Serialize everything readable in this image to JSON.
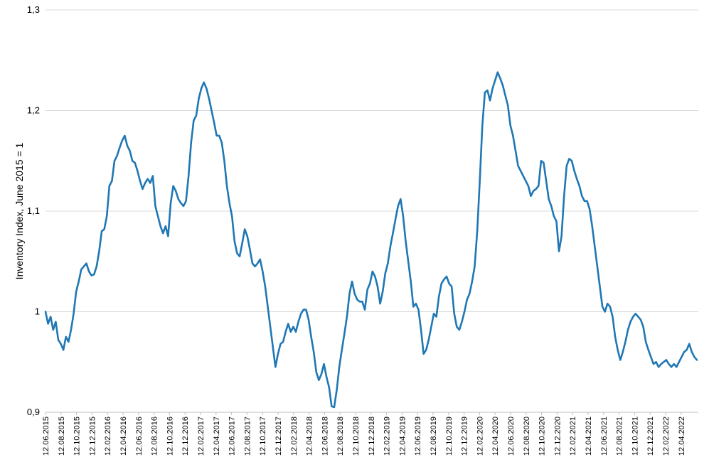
{
  "chart_data": {
    "type": "line",
    "title": "",
    "xlabel": "",
    "ylabel": "Inventory Index, June 2015 = 1",
    "ylim": [
      0.9,
      1.3
    ],
    "y_ticks": [
      "0,9",
      "1",
      "1,1",
      "1,2",
      "1,3"
    ],
    "y_tick_values": [
      0.9,
      1.0,
      1.1,
      1.2,
      1.3
    ],
    "grid": "horizontal",
    "line_color": "#1f77b4",
    "x_ticks": [
      "12.06.2015",
      "12.08.2015",
      "12.10.2015",
      "12.12.2015",
      "12.02.2016",
      "12.04.2016",
      "12.06.2016",
      "12.08.2016",
      "12.10.2016",
      "12.12.2016",
      "12.02.2017",
      "12.04.2017",
      "12.06.2017",
      "12.08.2017",
      "12.10.2017",
      "12.12.2017",
      "12.02.2018",
      "12.04.2018",
      "12.06.2018",
      "12.08.2018",
      "12.10.2018",
      "12.12.2018",
      "12.02.2019",
      "12.04.2019",
      "12.06.2019",
      "12.08.2019",
      "12.10.2019",
      "12.12.2019",
      "12.02.2020",
      "12.04.2020",
      "12.06.2020",
      "12.08.2020",
      "12.10.2020",
      "12.12.2020",
      "12.02.2021",
      "12.04.2021",
      "12.06.2021",
      "12.08.2021",
      "12.10.2021",
      "12.12.2021",
      "12.02.2022",
      "12.04.2022"
    ],
    "series": [
      {
        "x_start": "12.06.2015",
        "x_end": "30.05.2022",
        "values": [
          1.0,
          0.988,
          0.995,
          0.982,
          0.99,
          0.972,
          0.968,
          0.962,
          0.975,
          0.97,
          0.982,
          0.998,
          1.02,
          1.03,
          1.042,
          1.045,
          1.048,
          1.04,
          1.036,
          1.037,
          1.045,
          1.06,
          1.08,
          1.082,
          1.095,
          1.125,
          1.13,
          1.15,
          1.155,
          1.163,
          1.17,
          1.175,
          1.165,
          1.16,
          1.15,
          1.148,
          1.14,
          1.13,
          1.122,
          1.128,
          1.132,
          1.128,
          1.135,
          1.105,
          1.095,
          1.085,
          1.078,
          1.085,
          1.075,
          1.108,
          1.125,
          1.12,
          1.112,
          1.108,
          1.105,
          1.11,
          1.135,
          1.168,
          1.19,
          1.195,
          1.212,
          1.222,
          1.228,
          1.222,
          1.212,
          1.2,
          1.188,
          1.175,
          1.175,
          1.168,
          1.15,
          1.125,
          1.108,
          1.095,
          1.07,
          1.058,
          1.055,
          1.068,
          1.082,
          1.075,
          1.062,
          1.048,
          1.045,
          1.048,
          1.052,
          1.04,
          1.025,
          1.005,
          0.985,
          0.965,
          0.945,
          0.958,
          0.968,
          0.97,
          0.98,
          0.988,
          0.98,
          0.985,
          0.98,
          0.99,
          0.998,
          1.002,
          1.002,
          0.992,
          0.975,
          0.96,
          0.94,
          0.932,
          0.938,
          0.948,
          0.935,
          0.925,
          0.906,
          0.905,
          0.922,
          0.945,
          0.962,
          0.978,
          0.995,
          1.018,
          1.03,
          1.018,
          1.012,
          1.01,
          1.01,
          1.002,
          1.022,
          1.028,
          1.04,
          1.035,
          1.025,
          1.008,
          1.02,
          1.038,
          1.048,
          1.065,
          1.078,
          1.092,
          1.105,
          1.112,
          1.095,
          1.07,
          1.05,
          1.03,
          1.005,
          1.008,
          1.002,
          0.982,
          0.958,
          0.962,
          0.972,
          0.985,
          0.998,
          0.995,
          1.015,
          1.028,
          1.032,
          1.035,
          1.028,
          1.025,
          0.998,
          0.985,
          0.982,
          0.99,
          1.0,
          1.012,
          1.018,
          1.03,
          1.045,
          1.08,
          1.13,
          1.185,
          1.218,
          1.22,
          1.21,
          1.222,
          1.23,
          1.238,
          1.232,
          1.225,
          1.215,
          1.205,
          1.185,
          1.175,
          1.16,
          1.145,
          1.14,
          1.135,
          1.13,
          1.125,
          1.115,
          1.12,
          1.122,
          1.125,
          1.15,
          1.148,
          1.13,
          1.112,
          1.105,
          1.095,
          1.09,
          1.06,
          1.075,
          1.115,
          1.145,
          1.152,
          1.15,
          1.14,
          1.132,
          1.125,
          1.115,
          1.11,
          1.11,
          1.102,
          1.085,
          1.065,
          1.045,
          1.025,
          1.005,
          1.0,
          1.008,
          1.005,
          0.995,
          0.975,
          0.962,
          0.952,
          0.96,
          0.97,
          0.982,
          0.99,
          0.995,
          0.998,
          0.995,
          0.992,
          0.985,
          0.97,
          0.962,
          0.955,
          0.948,
          0.95,
          0.945,
          0.948,
          0.95,
          0.952,
          0.948,
          0.945,
          0.948,
          0.945,
          0.95,
          0.955,
          0.96,
          0.962,
          0.968,
          0.96,
          0.955,
          0.952
        ]
      }
    ]
  }
}
